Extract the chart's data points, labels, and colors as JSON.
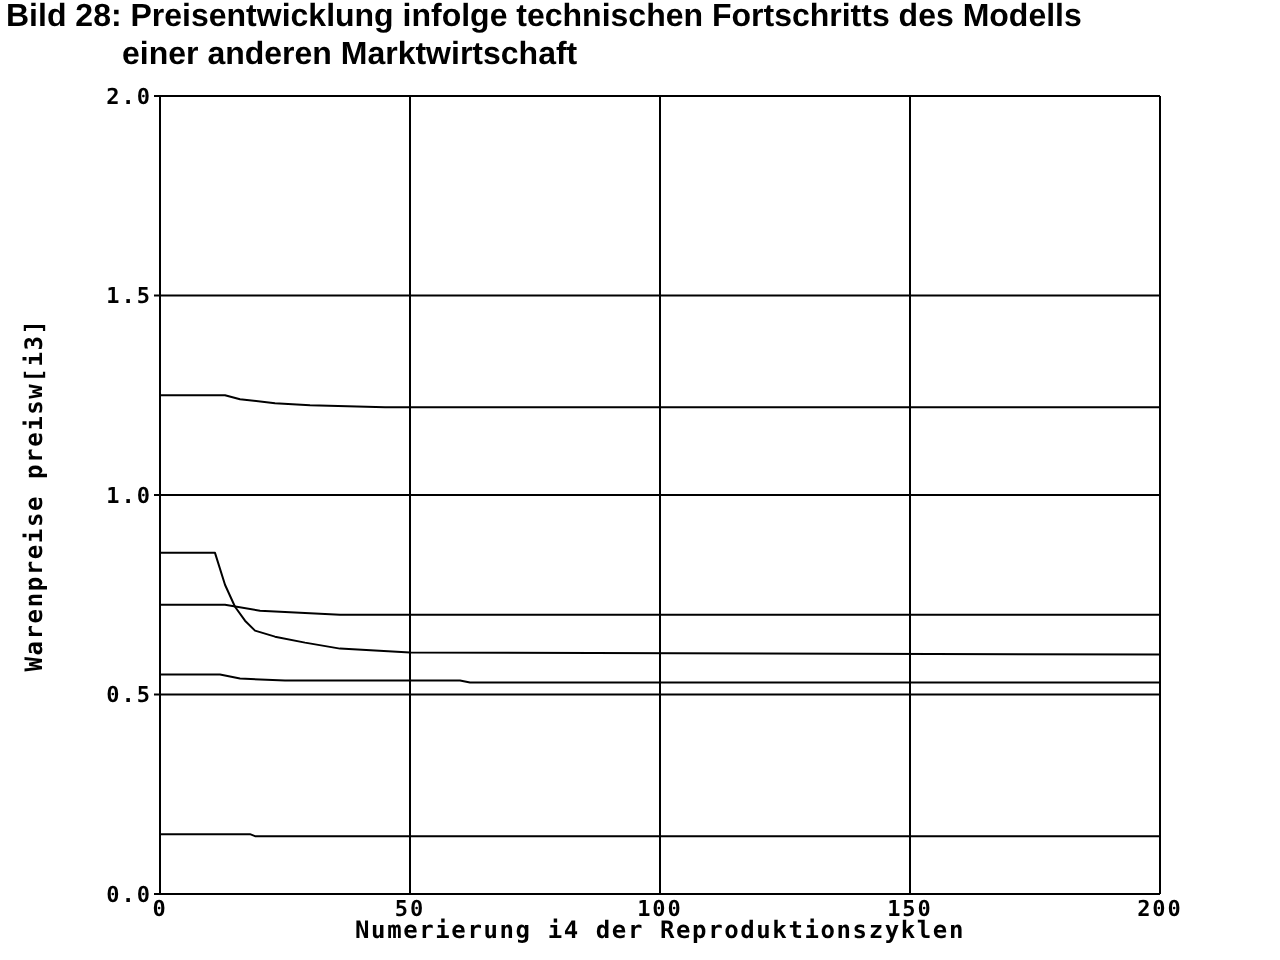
{
  "chart_data": {
    "type": "line",
    "title": "Bild 28: Preisentwicklung infolge technischen Fortschritts des Modells einer anderen Marktwirtschaft",
    "xlabel": "Numerierung i4 der Reproduktionszyklen",
    "ylabel": "Warenpreise preisw[i3]",
    "xlim": [
      0,
      200
    ],
    "xticks": [
      0,
      50,
      100,
      150,
      200
    ],
    "ylim": [
      0,
      2
    ],
    "yticks": [
      {
        "value": 0,
        "label": "0.0"
      },
      0.5,
      {
        "value": 1,
        "label": "1.0"
      },
      1.5,
      {
        "value": 2,
        "label": "2.0"
      }
    ],
    "grid": true,
    "marker": "none",
    "line_style": "solid",
    "series": [
      {
        "color": "#000000",
        "x": [
          0,
          13,
          16,
          23,
          30,
          45,
          200
        ],
        "values": [
          1.25,
          1.25,
          1.24,
          1.23,
          1.225,
          1.22,
          1.22
        ]
      },
      {
        "color": "#000000",
        "x": [
          0,
          11,
          13,
          15,
          17,
          19,
          23,
          29,
          36,
          50,
          200
        ],
        "values": [
          0.855,
          0.855,
          0.775,
          0.72,
          0.685,
          0.66,
          0.645,
          0.63,
          0.615,
          0.605,
          0.6
        ]
      },
      {
        "color": "#000000",
        "x": [
          0,
          13,
          20,
          36,
          200
        ],
        "values": [
          0.725,
          0.725,
          0.71,
          0.7,
          0.7
        ]
      },
      {
        "color": "#000000",
        "x": [
          0,
          12,
          16,
          25,
          60,
          62,
          200
        ],
        "values": [
          0.55,
          0.55,
          0.54,
          0.535,
          0.535,
          0.53,
          0.53
        ]
      },
      {
        "color": "#000000",
        "x": [
          0,
          18,
          19,
          200
        ],
        "values": [
          0.15,
          0.15,
          0.145,
          0.145
        ]
      }
    ]
  }
}
